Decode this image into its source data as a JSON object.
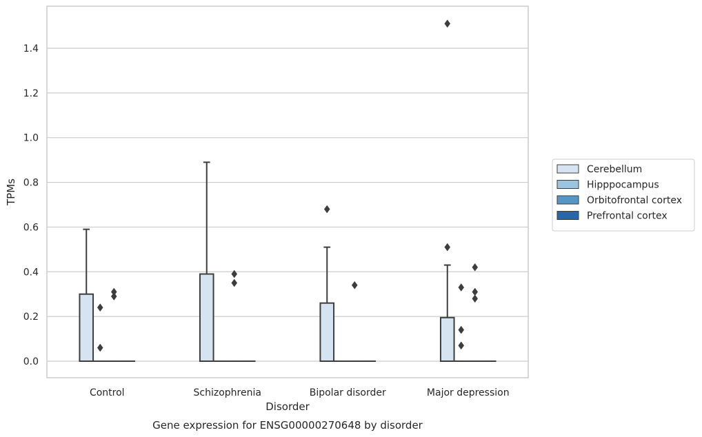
{
  "chart_data": {
    "type": "box",
    "caption": "Gene expression for ENSG00000270648 by disorder",
    "xlabel": "Disorder",
    "ylabel": "TPMs",
    "ylim": [
      -0.07,
      1.59
    ],
    "yticks": [
      0.0,
      0.2,
      0.4,
      0.6,
      0.8,
      1.0,
      1.2,
      1.4
    ],
    "grid": "horizontal",
    "legend_position": "right",
    "categories": [
      "Control",
      "Schizophrenia",
      "Bipolar disorder",
      "Major depression"
    ],
    "series": [
      {
        "name": "Cerebellum",
        "color": "#d6e4f1",
        "boxes": [
          {
            "q1": 0.0,
            "median": 0.0,
            "q3": 0.3,
            "whisker_low": 0.0,
            "whisker_high": 0.59,
            "outliers": []
          },
          {
            "q1": 0.0,
            "median": 0.0,
            "q3": 0.39,
            "whisker_low": 0.0,
            "whisker_high": 0.89,
            "outliers": []
          },
          {
            "q1": 0.0,
            "median": 0.0,
            "q3": 0.26,
            "whisker_low": 0.0,
            "whisker_high": 0.51,
            "outliers": [
              0.68
            ]
          },
          {
            "q1": 0.0,
            "median": 0.0,
            "q3": 0.195,
            "whisker_low": 0.0,
            "whisker_high": 0.43,
            "outliers": [
              0.51,
              1.51
            ]
          }
        ]
      },
      {
        "name": "Hipppocampus",
        "color": "#9ac4df",
        "boxes": [
          {
            "q1": 0.0,
            "median": 0.0,
            "q3": 0.0,
            "whisker_low": 0.0,
            "whisker_high": 0.0,
            "outliers": [
              0.06,
              0.24
            ]
          },
          {
            "q1": 0.0,
            "median": 0.0,
            "q3": 0.0,
            "whisker_low": 0.0,
            "whisker_high": 0.0,
            "outliers": []
          },
          {
            "q1": 0.0,
            "median": 0.0,
            "q3": 0.0,
            "whisker_low": 0.0,
            "whisker_high": 0.0,
            "outliers": []
          },
          {
            "q1": 0.0,
            "median": 0.0,
            "q3": 0.0,
            "whisker_low": 0.0,
            "whisker_high": 0.0,
            "outliers": [
              0.07,
              0.14,
              0.33
            ]
          }
        ]
      },
      {
        "name": "Orbitofrontal cortex",
        "color": "#5497c7",
        "boxes": [
          {
            "q1": 0.0,
            "median": 0.0,
            "q3": 0.0,
            "whisker_low": 0.0,
            "whisker_high": 0.0,
            "outliers": [
              0.29,
              0.31
            ]
          },
          {
            "q1": 0.0,
            "median": 0.0,
            "q3": 0.0,
            "whisker_low": 0.0,
            "whisker_high": 0.0,
            "outliers": [
              0.35,
              0.39
            ]
          },
          {
            "q1": 0.0,
            "median": 0.0,
            "q3": 0.0,
            "whisker_low": 0.0,
            "whisker_high": 0.0,
            "outliers": [
              0.34
            ]
          },
          {
            "q1": 0.0,
            "median": 0.0,
            "q3": 0.0,
            "whisker_low": 0.0,
            "whisker_high": 0.0,
            "outliers": [
              0.28,
              0.31,
              0.42
            ]
          }
        ]
      },
      {
        "name": "Prefrontal cortex",
        "color": "#2767a9",
        "boxes": [
          {
            "q1": 0.0,
            "median": 0.0,
            "q3": 0.0,
            "whisker_low": 0.0,
            "whisker_high": 0.0,
            "outliers": []
          },
          {
            "q1": 0.0,
            "median": 0.0,
            "q3": 0.0,
            "whisker_low": 0.0,
            "whisker_high": 0.0,
            "outliers": []
          },
          {
            "q1": 0.0,
            "median": 0.0,
            "q3": 0.0,
            "whisker_low": 0.0,
            "whisker_high": 0.0,
            "outliers": []
          },
          {
            "q1": 0.0,
            "median": 0.0,
            "q3": 0.0,
            "whisker_low": 0.0,
            "whisker_high": 0.0,
            "outliers": []
          }
        ]
      }
    ]
  }
}
